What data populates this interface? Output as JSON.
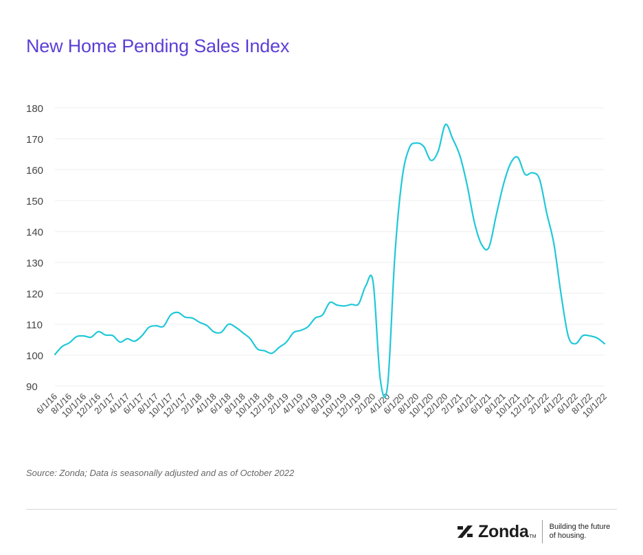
{
  "chart_data": {
    "type": "line",
    "title": "New Home Pending Sales Index",
    "xlabel": "",
    "ylabel": "",
    "ylim": [
      90,
      180
    ],
    "yticks": [
      90,
      100,
      110,
      120,
      130,
      140,
      150,
      160,
      170,
      180
    ],
    "grid": true,
    "line_color": "#1ec8d8",
    "x": [
      "6/1/16",
      "7/1/16",
      "8/1/16",
      "9/1/16",
      "10/1/16",
      "11/1/16",
      "12/1/16",
      "1/1/17",
      "2/1/17",
      "3/1/17",
      "4/1/17",
      "5/1/17",
      "6/1/17",
      "7/1/17",
      "8/1/17",
      "9/1/17",
      "10/1/17",
      "11/1/17",
      "12/1/17",
      "1/1/18",
      "2/1/18",
      "3/1/18",
      "4/1/18",
      "5/1/18",
      "6/1/18",
      "7/1/18",
      "8/1/18",
      "9/1/18",
      "10/1/18",
      "11/1/18",
      "12/1/18",
      "1/1/19",
      "2/1/19",
      "3/1/19",
      "4/1/19",
      "5/1/19",
      "6/1/19",
      "7/1/19",
      "8/1/19",
      "9/1/19",
      "10/1/19",
      "11/1/19",
      "12/1/19",
      "1/1/20",
      "2/1/20",
      "3/1/20",
      "4/1/20",
      "5/1/20",
      "6/1/20",
      "7/1/20",
      "8/1/20",
      "9/1/20",
      "10/1/20",
      "11/1/20",
      "12/1/20",
      "1/1/21",
      "2/1/21",
      "3/1/21",
      "4/1/21",
      "5/1/21",
      "6/1/21",
      "7/1/21",
      "8/1/21",
      "9/1/21",
      "10/1/21",
      "11/1/21",
      "12/1/21",
      "1/1/22",
      "2/1/22",
      "3/1/22",
      "4/1/22",
      "5/1/22",
      "6/1/22",
      "7/1/22",
      "8/1/22",
      "9/1/22",
      "10/1/22"
    ],
    "xtick_labels": [
      "6/1/16",
      "8/1/16",
      "10/1/16",
      "12/1/16",
      "2/1/17",
      "4/1/17",
      "6/1/17",
      "8/1/17",
      "10/1/17",
      "12/1/17",
      "2/1/18",
      "4/1/18",
      "6/1/18",
      "8/1/18",
      "10/1/18",
      "12/1/18",
      "2/1/19",
      "4/1/19",
      "6/1/19",
      "8/1/19",
      "10/1/19",
      "12/1/19",
      "2/1/20",
      "4/1/20",
      "6/1/20",
      "8/1/20",
      "10/1/20",
      "12/1/20",
      "2/1/21",
      "4/1/21",
      "6/1/21",
      "8/1/21",
      "10/1/21",
      "12/1/21",
      "2/1/22",
      "4/1/22",
      "6/1/22",
      "8/1/22",
      "10/1/22"
    ],
    "series": [
      {
        "name": "",
        "values": [
          100.2,
          102.8,
          104,
          106,
          106.2,
          105.8,
          107.6,
          106.5,
          106.3,
          104.2,
          105.3,
          104.5,
          106.2,
          109,
          109.5,
          109.3,
          113,
          113.8,
          112.3,
          112,
          110.6,
          109.6,
          107.5,
          107.4,
          110,
          109,
          107.2,
          105.3,
          102,
          101.4,
          100.6,
          102.5,
          104.2,
          107.3,
          108,
          109.2,
          112,
          113,
          117,
          116.2,
          115.9,
          116.4,
          116.6,
          122.5,
          123.6,
          92,
          90.2,
          132,
          157,
          167,
          168.6,
          167.5,
          163,
          166,
          174.6,
          170,
          164.5,
          155,
          143,
          135.8,
          134.8,
          145,
          155,
          162,
          164,
          158.5,
          159,
          157,
          146,
          136,
          119.5,
          106,
          103.7,
          106.3,
          106.2,
          105.5,
          103.7
        ]
      }
    ]
  },
  "source_note": "Source: Zonda; Data is seasonally adjusted and as of October 2022",
  "brand": {
    "name": "Zonda",
    "tm": "TM",
    "tagline_line1": "Building the future",
    "tagline_line2": "of housing."
  }
}
